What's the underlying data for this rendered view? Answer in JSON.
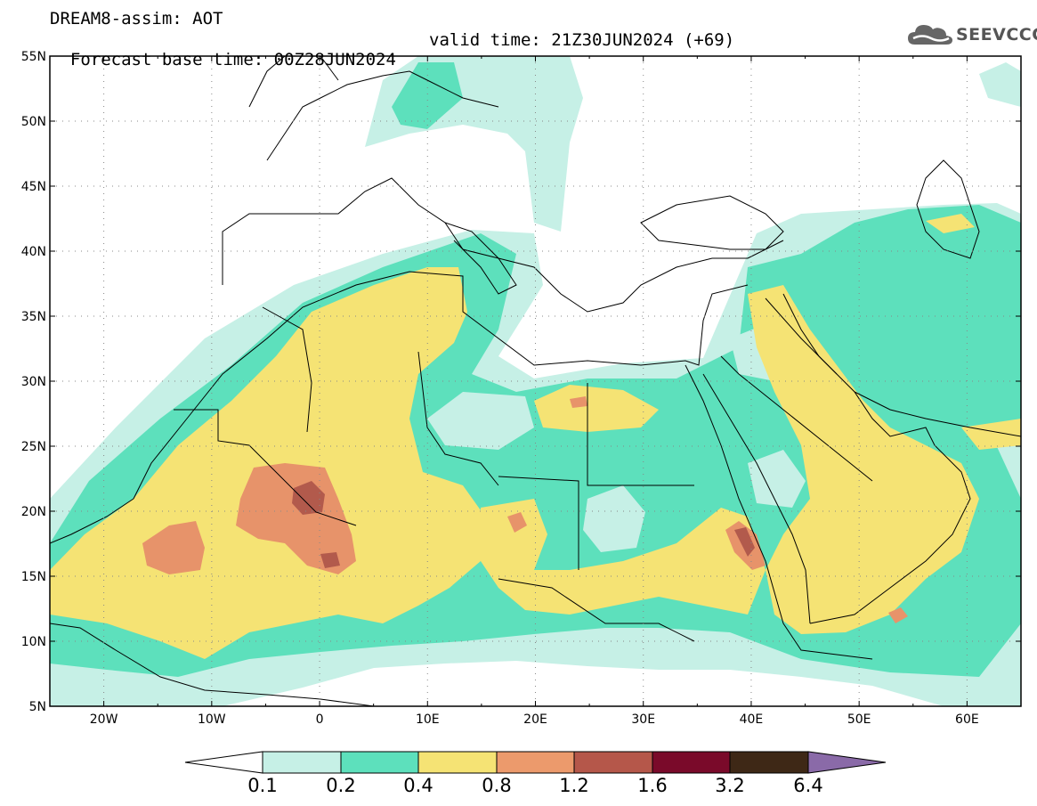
{
  "header": {
    "line1": "DREAM8-assim: AOT",
    "base_time": "Forecast base time: 00Z28JUN2024",
    "valid_time": "valid time: 21Z30JUN2024 (+69)"
  },
  "logo": {
    "text": "SEEVCCC",
    "icon": "cloud-icon"
  },
  "map": {
    "lon_range": [
      -25,
      65
    ],
    "lat_range": [
      5,
      55
    ],
    "lat_labels": [
      "55N",
      "50N",
      "45N",
      "40N",
      "35N",
      "30N",
      "25N",
      "20N",
      "15N",
      "10N",
      "5N"
    ],
    "lon_labels": [
      "20W",
      "10W",
      "0",
      "10E",
      "20E",
      "30E",
      "40E",
      "50E",
      "60E"
    ],
    "gridlines": "dotted"
  },
  "colorbar": {
    "labels": [
      "0.1",
      "0.2",
      "0.4",
      "0.8",
      "1.2",
      "1.6",
      "3.2",
      "6.4"
    ],
    "colors": [
      "#c6f0e6",
      "#5de0bc",
      "#f5e374",
      "#ec9a6c",
      "#b5574a",
      "#7a0a2a",
      "#3e2816",
      "#8a6aa8"
    ],
    "under_color": "#ffffff"
  },
  "field_colors": {
    "c1": "#c6f0e6",
    "c2": "#5de0bc",
    "c3": "#f5e374",
    "c4": "#e7936a",
    "c5": "#b25a4c"
  }
}
